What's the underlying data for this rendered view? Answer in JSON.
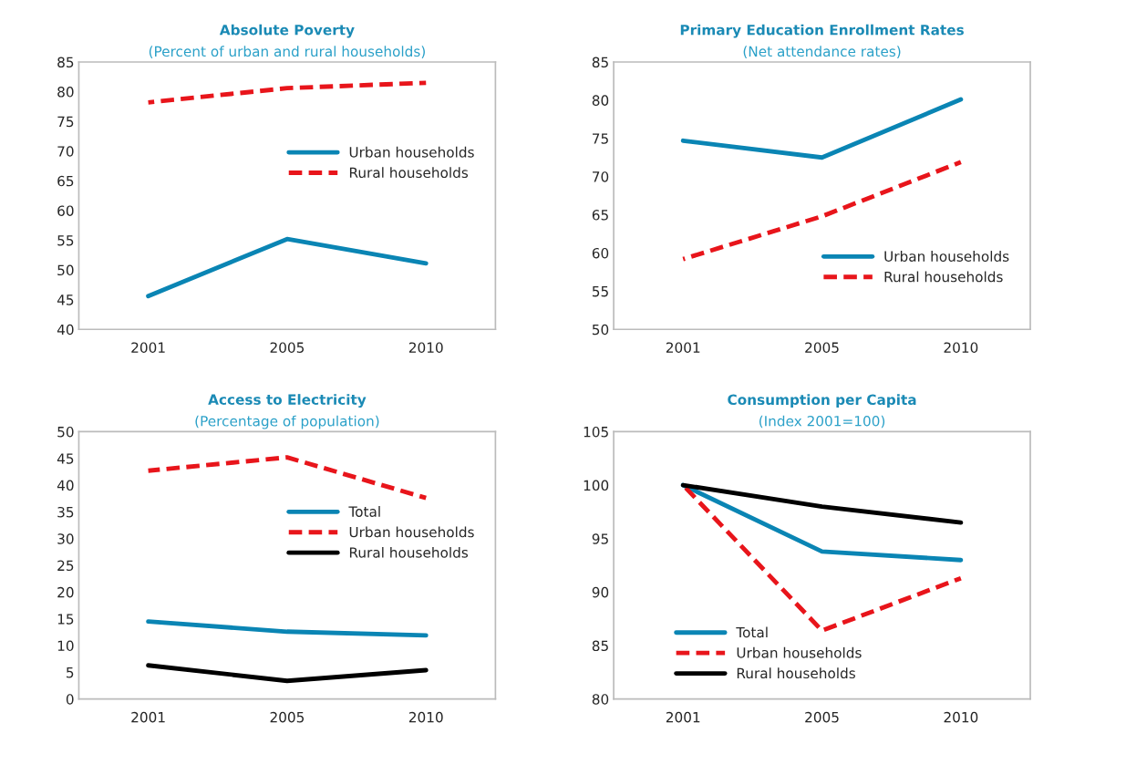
{
  "chart_data": [
    {
      "type": "line",
      "title": "Absolute Poverty",
      "subtitle": "(Percent of urban and rural households)",
      "categories": [
        "2001",
        "2005",
        "2010"
      ],
      "ylim": [
        40,
        85
      ],
      "yticks": [
        40,
        45,
        50,
        55,
        60,
        65,
        70,
        75,
        80,
        85
      ],
      "grid": false,
      "legend": "center right",
      "series": [
        {
          "name": "Urban households",
          "color": "#0a85b4",
          "line_style": "solid",
          "values": [
            45.6,
            55.2,
            51.1
          ]
        },
        {
          "name": "Rural households",
          "color": "#e8151b",
          "line_style": "dashed",
          "values": [
            78.2,
            80.6,
            81.5
          ]
        }
      ]
    },
    {
      "type": "line",
      "title": "Primary Education Enrollment Rates",
      "subtitle": "(Net attendance rates)",
      "categories": [
        "2001",
        "2005",
        "2010"
      ],
      "ylim": [
        50,
        85
      ],
      "yticks": [
        50,
        55,
        60,
        65,
        70,
        75,
        80,
        85
      ],
      "grid": false,
      "legend": "lower right",
      "series": [
        {
          "name": "Urban households",
          "color": "#0a85b4",
          "line_style": "solid",
          "values": [
            74.7,
            72.5,
            80.1
          ]
        },
        {
          "name": "Rural households",
          "color": "#e8151b",
          "line_style": "dashed",
          "values": [
            59.2,
            64.8,
            71.9
          ]
        }
      ]
    },
    {
      "type": "line",
      "title": "Access to Electricity",
      "subtitle": "(Percentage of population)",
      "categories": [
        "2001",
        "2005",
        "2010"
      ],
      "ylim": [
        0,
        50
      ],
      "yticks": [
        0,
        5,
        10,
        15,
        20,
        25,
        30,
        35,
        40,
        45,
        50
      ],
      "grid": false,
      "legend": "center right",
      "series": [
        {
          "name": "Total",
          "color": "#0a85b4",
          "line_style": "solid",
          "values": [
            14.5,
            12.6,
            11.9
          ]
        },
        {
          "name": "Urban households",
          "color": "#e8151b",
          "line_style": "dashed",
          "values": [
            42.7,
            45.2,
            37.6
          ]
        },
        {
          "name": "Rural households",
          "color": "#000000",
          "line_style": "solid",
          "values": [
            6.3,
            3.4,
            5.4
          ]
        }
      ]
    },
    {
      "type": "line",
      "title": "Consumption per Capita",
      "subtitle": "(Index 2001=100)",
      "categories": [
        "2001",
        "2005",
        "2010"
      ],
      "ylim": [
        80,
        105
      ],
      "yticks": [
        80,
        85,
        90,
        95,
        100,
        105
      ],
      "grid": false,
      "legend": "lower left",
      "series": [
        {
          "name": "Total",
          "color": "#0a85b4",
          "line_style": "solid",
          "values": [
            100,
            93.8,
            93.0
          ]
        },
        {
          "name": "Urban households",
          "color": "#e8151b",
          "line_style": "dashed",
          "values": [
            100,
            86.4,
            91.3
          ]
        },
        {
          "name": "Rural households",
          "color": "#000000",
          "line_style": "solid",
          "values": [
            100,
            98.0,
            96.5
          ]
        }
      ]
    }
  ]
}
